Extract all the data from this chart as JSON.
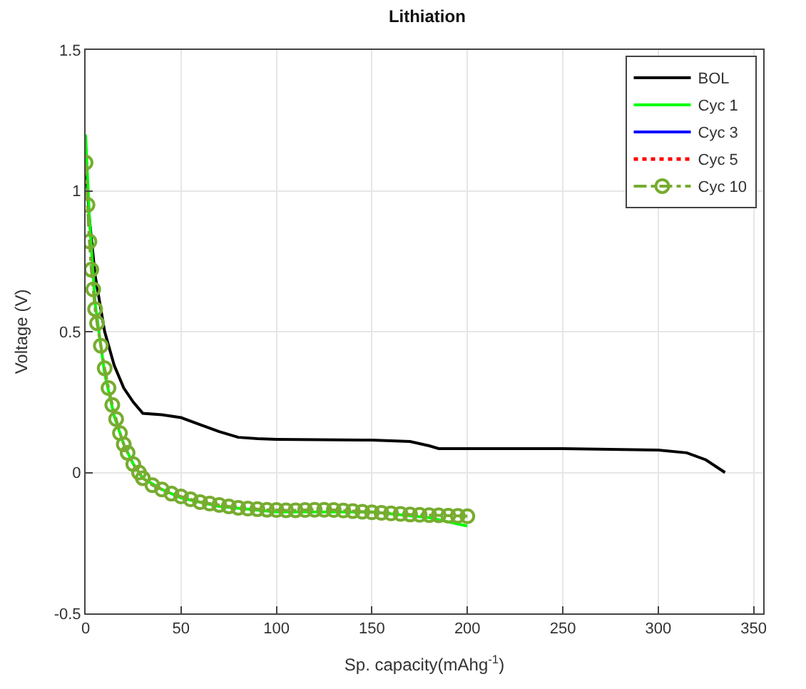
{
  "chart_data": {
    "type": "line",
    "title": "Lithiation",
    "xlabel": "Sp. capacity(mAhg$^{-1}$)",
    "ylabel": "Voltage (V)",
    "xlim": [
      0,
      355
    ],
    "xticks": [
      0,
      50,
      100,
      150,
      200,
      250,
      300,
      350
    ],
    "ylim": [
      -0.5,
      1.5
    ],
    "yticks": [
      -0.5,
      0,
      0.5,
      1,
      1.5
    ],
    "grid": true,
    "legend": "top right",
    "series": [
      {
        "name": "BOL",
        "color": "#000000",
        "line_style": "solid",
        "marker": "none",
        "x": [
          0,
          2,
          5,
          10,
          15,
          20,
          25,
          30,
          40,
          50,
          60,
          70,
          80,
          90,
          100,
          150,
          170,
          180,
          185,
          200,
          250,
          300,
          315,
          325,
          335
        ],
        "values": [
          1.1,
          0.9,
          0.7,
          0.5,
          0.38,
          0.3,
          0.25,
          0.21,
          0.205,
          0.195,
          0.17,
          0.145,
          0.125,
          0.12,
          0.118,
          0.115,
          0.11,
          0.095,
          0.085,
          0.085,
          0.085,
          0.08,
          0.07,
          0.045,
          0.0
        ]
      },
      {
        "name": "Cyc 1",
        "color": "#00ff00",
        "line_style": "solid",
        "marker": "none",
        "x": [
          0,
          2,
          5,
          10,
          15,
          20,
          25,
          30,
          40,
          50,
          70,
          100,
          150,
          180,
          200
        ],
        "values": [
          1.2,
          0.9,
          0.6,
          0.35,
          0.2,
          0.1,
          0.03,
          -0.02,
          -0.06,
          -0.09,
          -0.12,
          -0.14,
          -0.14,
          -0.16,
          -0.19
        ]
      },
      {
        "name": "Cyc 3",
        "color": "#0000ff",
        "line_style": "solid",
        "marker": "none"
      },
      {
        "name": "Cyc 5",
        "color": "#ff0000",
        "line_style": "dotted",
        "marker": "none"
      },
      {
        "name": "Cyc 10",
        "color": "#77ac30",
        "line_style": "dashed",
        "marker": "circle",
        "x": [
          0,
          1,
          2,
          3,
          4,
          5,
          6,
          8,
          10,
          12,
          14,
          16,
          18,
          20,
          22,
          25,
          28,
          30,
          35,
          40,
          45,
          50,
          55,
          60,
          65,
          70,
          75,
          80,
          85,
          90,
          95,
          100,
          105,
          110,
          115,
          120,
          125,
          130,
          135,
          140,
          145,
          150,
          155,
          160,
          165,
          170,
          175,
          180,
          185,
          190,
          195,
          200
        ],
        "values": [
          1.1,
          0.95,
          0.82,
          0.72,
          0.65,
          0.58,
          0.53,
          0.45,
          0.37,
          0.3,
          0.24,
          0.19,
          0.14,
          0.1,
          0.07,
          0.03,
          0.0,
          -0.02,
          -0.045,
          -0.06,
          -0.075,
          -0.085,
          -0.095,
          -0.105,
          -0.11,
          -0.115,
          -0.12,
          -0.125,
          -0.128,
          -0.13,
          -0.132,
          -0.133,
          -0.134,
          -0.134,
          -0.133,
          -0.132,
          -0.132,
          -0.133,
          -0.135,
          -0.137,
          -0.139,
          -0.141,
          -0.143,
          -0.145,
          -0.147,
          -0.149,
          -0.15,
          -0.151,
          -0.152,
          -0.153,
          -0.154,
          -0.155
        ]
      }
    ]
  }
}
